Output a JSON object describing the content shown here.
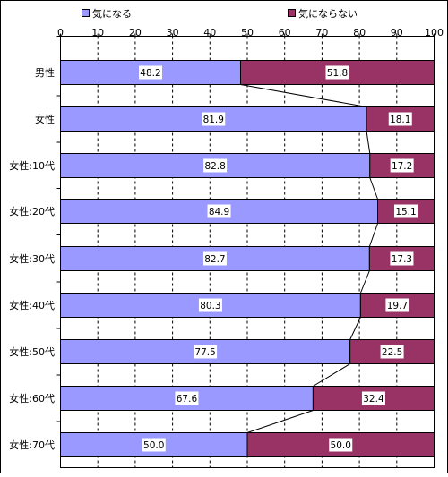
{
  "chart_data": {
    "type": "bar",
    "orientation": "horizontal",
    "stacked": true,
    "percent": true,
    "categories": [
      "男性",
      "女性",
      "女性:10代",
      "女性:20代",
      "女性:30代",
      "女性:40代",
      "女性:50代",
      "女性:60代",
      "女性:70代"
    ],
    "series": [
      {
        "name": "気になる",
        "color": "#9999ff",
        "values": [
          48.2,
          81.9,
          82.8,
          84.9,
          82.7,
          80.3,
          77.5,
          67.6,
          50.0
        ]
      },
      {
        "name": "気にならない",
        "color": "#993366",
        "values": [
          51.8,
          18.1,
          17.2,
          15.1,
          17.3,
          19.7,
          22.5,
          32.4,
          50.0
        ]
      }
    ],
    "xlim": [
      0,
      100
    ],
    "xticks": [
      0,
      10,
      20,
      30,
      40,
      50,
      60,
      70,
      80,
      90,
      100
    ],
    "grid": "vertical dashed",
    "series_lines": true,
    "legend_position": "top",
    "data_labels": true
  }
}
